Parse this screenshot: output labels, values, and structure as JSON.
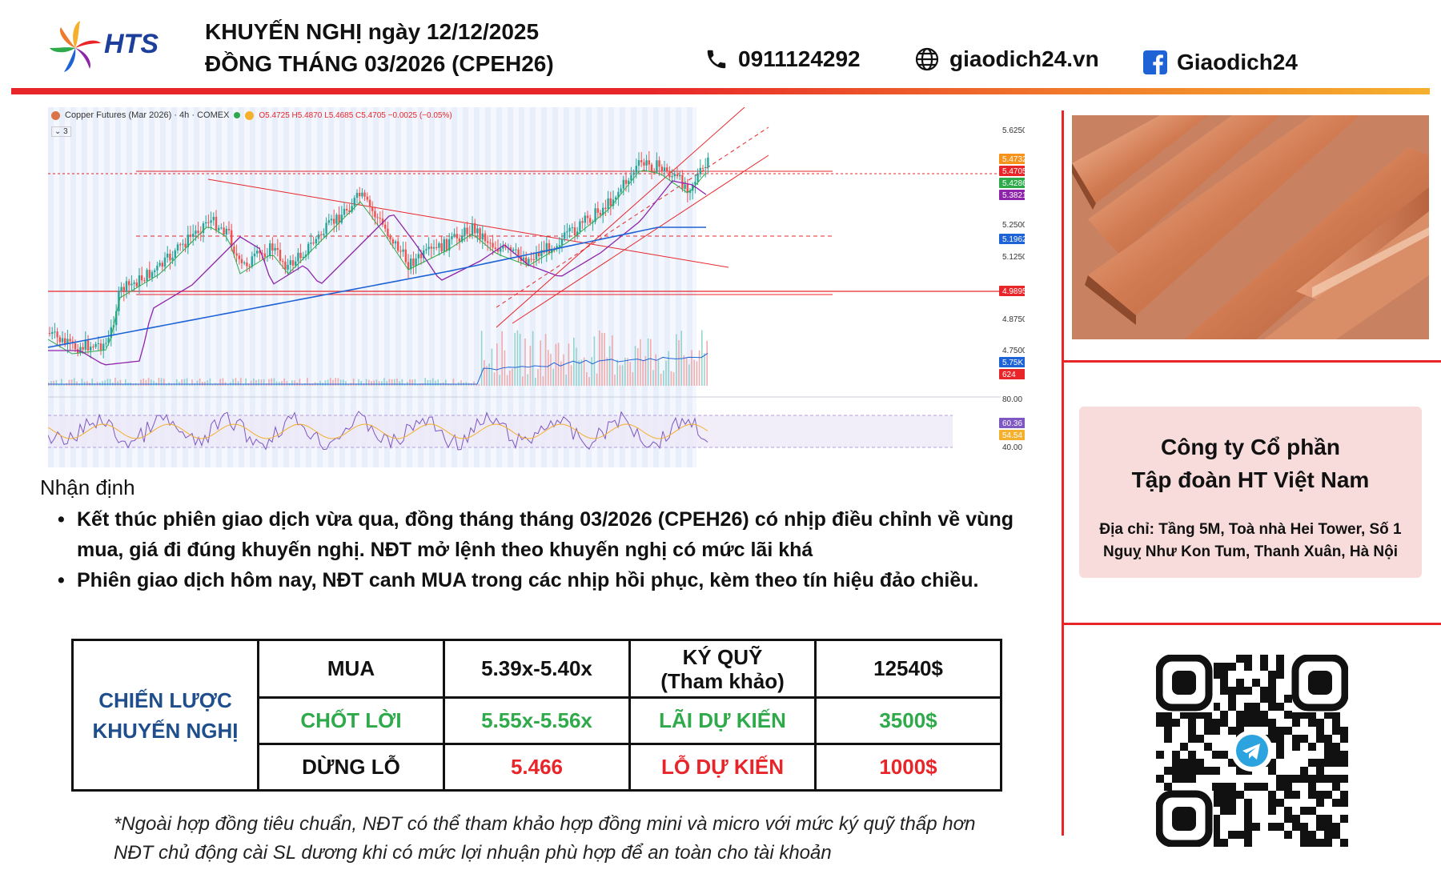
{
  "header": {
    "logo_text": "HTS",
    "title_line1": "KHUYẾN NGHỊ ngày 12/12/2025",
    "title_line2": "ĐỒNG THÁNG 03/2026 (CPEH26)",
    "phone": "0911124292",
    "website": "giaodich24.vn",
    "facebook": "Giaodich24",
    "icons": [
      "phone-icon",
      "globe-icon",
      "facebook-icon"
    ]
  },
  "chart": {
    "header_text": "Copper Futures (Mar 2026) · 4h · COMEX",
    "ohlc_text": "O5.4725 H5.4870 L5.4685 C5.4705 −0.0025 (−0.05%)",
    "indicator_count": "3",
    "price_axis_labels": [
      "5.6250",
      "5.2500",
      "5.1250",
      "4.8750",
      "4.7500",
      "80.00",
      "40.00"
    ],
    "price_badges": [
      {
        "text": "5.4732",
        "color": "#f7931a"
      },
      {
        "text": "5.4705",
        "color": "#e8262a"
      },
      {
        "text": "5.4286",
        "color": "#2eaa4a"
      },
      {
        "text": "5.3821",
        "color": "#8e24aa"
      },
      {
        "text": "5.1962",
        "color": "#1e63d6"
      },
      {
        "text": "4.9895",
        "color": "#e8262a"
      },
      {
        "text": "5.75K",
        "color": "#1e63d6"
      },
      {
        "text": "624",
        "color": "#e8262a"
      },
      {
        "text": "60.36",
        "color": "#7e57c2"
      },
      {
        "text": "54.54",
        "color": "#f5b02d"
      }
    ]
  },
  "company": {
    "name_line1": "Công ty Cổ phần",
    "name_line2": "Tập đoàn HT Việt Nam",
    "address_line1": "Địa chỉ: Tầng 5M, Toà nhà Hei Tower, Số 1",
    "address_line2": "Nguỵ Như Kon Tum, Thanh Xuân, Hà Nội"
  },
  "analysis": {
    "title": "Nhận định",
    "bullets": [
      "Kết thúc phiên giao dịch vừa qua, đồng tháng tháng 03/2026 (CPEH26) có nhịp điều chỉnh về vùng mua, giá đi đúng khuyến nghị. NĐT mở lệnh theo khuyến nghị có mức lãi khá",
      "Phiên giao dịch hôm nay, NĐT canh MUA trong các nhịp hồi phục, kèm theo tín hiệu đảo chiều."
    ]
  },
  "strategy": {
    "label_line1": "CHIẾN LƯỢC",
    "label_line2": "KHUYẾN NGHỊ",
    "buy_label": "MUA",
    "buy_value": "5.39x-5.40x",
    "margin_label_line1": "KÝ QUỸ",
    "margin_label_line2": "(Tham khảo)",
    "margin_value": "12540$",
    "tp_label": "CHỐT LỜI",
    "tp_value": "5.55x-5.56x",
    "profit_label": "LÃI DỰ KIẾN",
    "profit_value": "3500$",
    "sl_label": "DỪNG LỖ",
    "sl_value": "5.466",
    "loss_label": "LỖ DỰ KIẾN",
    "loss_value": "1000$"
  },
  "footnote": {
    "line1": "*Ngoài hợp đồng tiêu chuẩn, NĐT có thể tham khảo hợp đồng mini và micro với mức ký quỹ thấp hơn",
    "line2": "NĐT chủ động cài SL dương khi có mức lợi nhuận phù hợp để an toàn cho tài khoản"
  },
  "colors": {
    "accent_red": "#e8262a",
    "blue_label": "#1f4e8c",
    "green": "#2eaa4a",
    "pink_box": "#f8dcdc"
  }
}
